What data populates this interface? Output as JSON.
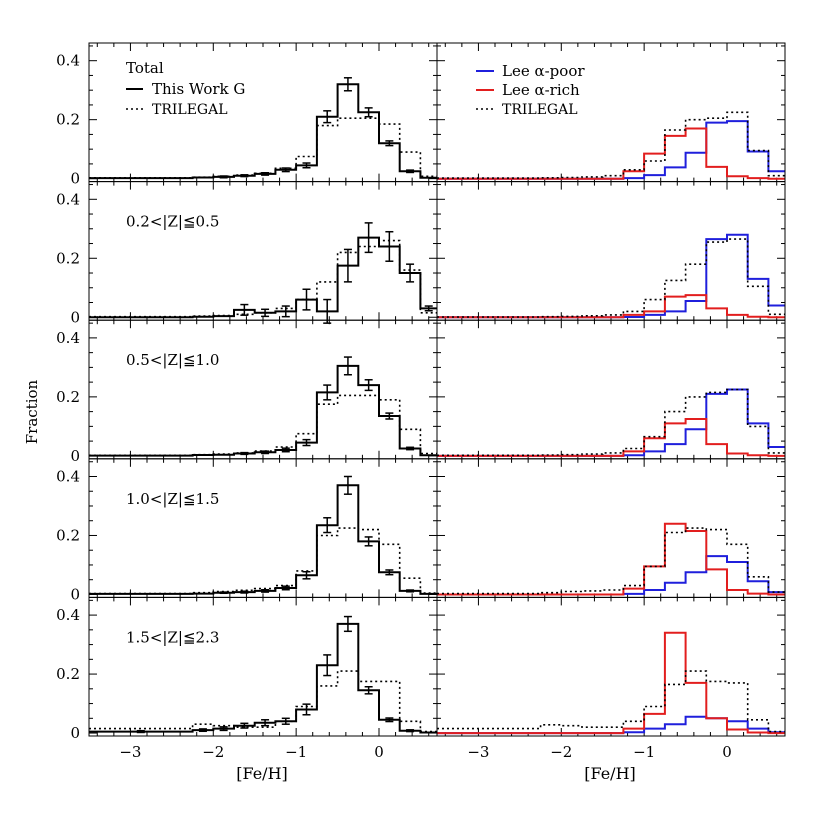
{
  "figure": {
    "ylabel": "Fraction",
    "xlabel": "[Fe/H]",
    "xlim": [
      -3.5,
      0.7
    ],
    "ylim": [
      -0.01,
      0.46
    ],
    "x_ticks": [
      -3,
      -2,
      -1,
      0
    ],
    "x_tick_labels": [
      "−3",
      "−2",
      "−1",
      "0"
    ],
    "y_ticks": [
      0,
      0.2,
      0.4
    ],
    "y_tick_labels": [
      "0",
      "0.2",
      "0.4"
    ]
  },
  "colors": {
    "blue": "#1f1fdc",
    "red": "#e21e1e",
    "black": "#000000"
  },
  "legend_left": {
    "title": "Total",
    "items": [
      "This Work G",
      "TRILEGAL"
    ]
  },
  "legend_right": {
    "items": [
      "Lee α-poor",
      "Lee α-rich",
      "TRILEGAL"
    ]
  },
  "chart_data": [
    {
      "type": "step",
      "panel": "left",
      "row": 0,
      "label": "Total",
      "bin_edges": [
        -3.5,
        -2.25,
        -2.0,
        -1.75,
        -1.5,
        -1.25,
        -1.0,
        -0.75,
        -0.5,
        -0.25,
        0.0,
        0.25,
        0.5,
        0.7
      ],
      "series": [
        {
          "name": "This Work G",
          "style": "solid",
          "values": [
            0.002,
            0.004,
            0.006,
            0.01,
            0.016,
            0.03,
            0.045,
            0.21,
            0.32,
            0.225,
            0.12,
            0.025,
            0.003
          ],
          "errors": [
            0.002,
            0.002,
            0.003,
            0.003,
            0.004,
            0.006,
            0.008,
            0.02,
            0.022,
            0.015,
            0.008,
            0.004,
            0.002
          ]
        },
        {
          "name": "TRILEGAL",
          "style": "dotted",
          "values": [
            0.003,
            0.005,
            0.008,
            0.012,
            0.018,
            0.035,
            0.075,
            0.18,
            0.205,
            0.205,
            0.185,
            0.09,
            0.008
          ]
        }
      ]
    },
    {
      "type": "step",
      "panel": "left",
      "row": 1,
      "label": "0.2<|Z|≦0.5",
      "bin_edges": [
        -3.5,
        -2.25,
        -2.0,
        -1.75,
        -1.5,
        -1.25,
        -1.0,
        -0.75,
        -0.5,
        -0.25,
        0.0,
        0.25,
        0.5,
        0.7
      ],
      "series": [
        {
          "name": "This Work G",
          "style": "solid",
          "values": [
            0.0,
            0.002,
            0.004,
            0.025,
            0.015,
            0.02,
            0.06,
            0.02,
            0.175,
            0.27,
            0.24,
            0.15,
            0.03
          ],
          "errors": [
            0.0,
            0.003,
            0.004,
            0.018,
            0.012,
            0.018,
            0.035,
            0.04,
            0.055,
            0.05,
            0.05,
            0.03,
            0.008
          ]
        },
        {
          "name": "TRILEGAL",
          "style": "dotted",
          "values": [
            0.002,
            0.004,
            0.006,
            0.01,
            0.015,
            0.03,
            0.06,
            0.12,
            0.22,
            0.24,
            0.26,
            0.16,
            0.015
          ]
        }
      ]
    },
    {
      "type": "step",
      "panel": "left",
      "row": 2,
      "label": "0.5<|Z|≦1.0",
      "bin_edges": [
        -3.5,
        -2.25,
        -2.0,
        -1.75,
        -1.5,
        -1.25,
        -1.0,
        -0.75,
        -0.5,
        -0.25,
        0.0,
        0.25,
        0.5,
        0.7
      ],
      "series": [
        {
          "name": "This Work G",
          "style": "solid",
          "values": [
            0.001,
            0.003,
            0.004,
            0.008,
            0.012,
            0.02,
            0.045,
            0.215,
            0.305,
            0.24,
            0.135,
            0.025,
            0.002
          ],
          "errors": [
            0.001,
            0.002,
            0.002,
            0.003,
            0.004,
            0.006,
            0.01,
            0.025,
            0.03,
            0.018,
            0.01,
            0.004,
            0.001
          ]
        },
        {
          "name": "TRILEGAL",
          "style": "dotted",
          "values": [
            0.002,
            0.004,
            0.006,
            0.01,
            0.016,
            0.03,
            0.075,
            0.175,
            0.205,
            0.205,
            0.19,
            0.09,
            0.008
          ]
        }
      ]
    },
    {
      "type": "step",
      "panel": "left",
      "row": 3,
      "label": "1.0<|Z|≦1.5",
      "bin_edges": [
        -3.5,
        -2.25,
        -2.0,
        -1.75,
        -1.5,
        -1.25,
        -1.0,
        -0.75,
        -0.5,
        -0.25,
        0.0,
        0.25,
        0.5,
        0.7
      ],
      "series": [
        {
          "name": "This Work G",
          "style": "solid",
          "values": [
            0.002,
            0.003,
            0.006,
            0.008,
            0.012,
            0.022,
            0.065,
            0.235,
            0.37,
            0.18,
            0.075,
            0.012,
            0.002
          ],
          "errors": [
            0.001,
            0.002,
            0.002,
            0.003,
            0.004,
            0.006,
            0.012,
            0.025,
            0.03,
            0.015,
            0.008,
            0.003,
            0.001
          ]
        },
        {
          "name": "TRILEGAL",
          "style": "dotted",
          "values": [
            0.003,
            0.006,
            0.01,
            0.014,
            0.02,
            0.03,
            0.08,
            0.2,
            0.225,
            0.22,
            0.17,
            0.055,
            0.005
          ]
        }
      ]
    },
    {
      "type": "step",
      "panel": "left",
      "row": 4,
      "label": "1.5<|Z|≦2.3",
      "bin_edges": [
        -3.5,
        -2.25,
        -2.0,
        -1.75,
        -1.5,
        -1.25,
        -1.0,
        -0.75,
        -0.5,
        -0.25,
        0.0,
        0.25,
        0.5,
        0.7
      ],
      "series": [
        {
          "name": "This Work G",
          "style": "solid",
          "values": [
            0.005,
            0.01,
            0.015,
            0.025,
            0.035,
            0.04,
            0.08,
            0.23,
            0.37,
            0.145,
            0.045,
            0.008,
            0.002
          ],
          "errors": [
            0.003,
            0.004,
            0.006,
            0.008,
            0.01,
            0.01,
            0.018,
            0.035,
            0.025,
            0.012,
            0.006,
            0.003,
            0.001
          ]
        },
        {
          "name": "TRILEGAL",
          "style": "dotted",
          "values": [
            0.015,
            0.03,
            0.025,
            0.02,
            0.02,
            0.04,
            0.09,
            0.16,
            0.21,
            0.175,
            0.175,
            0.04,
            0.005
          ]
        }
      ]
    },
    {
      "type": "step",
      "panel": "right",
      "row": 0,
      "bin_edges": [
        -3.5,
        -2.25,
        -2.0,
        -1.75,
        -1.5,
        -1.25,
        -1.0,
        -0.75,
        -0.5,
        -0.25,
        0.0,
        0.25,
        0.5,
        0.7
      ],
      "series": [
        {
          "name": "Lee α-poor",
          "color": "blue",
          "values": [
            0,
            0,
            0,
            0,
            0,
            0.002,
            0.012,
            0.038,
            0.088,
            0.19,
            0.195,
            0.092,
            0.025
          ]
        },
        {
          "name": "Lee α-rich",
          "color": "red",
          "values": [
            0,
            0,
            0,
            0,
            0,
            0.025,
            0.085,
            0.145,
            0.17,
            0.04,
            0.008,
            0.002,
            0
          ]
        },
        {
          "name": "TRILEGAL",
          "style": "dotted",
          "values": [
            0.002,
            0.003,
            0.004,
            0.006,
            0.01,
            0.03,
            0.06,
            0.165,
            0.2,
            0.205,
            0.225,
            0.095,
            0.01
          ]
        }
      ]
    },
    {
      "type": "step",
      "panel": "right",
      "row": 1,
      "bin_edges": [
        -3.5,
        -2.25,
        -2.0,
        -1.75,
        -1.5,
        -1.25,
        -1.0,
        -0.75,
        -0.5,
        -0.25,
        0.0,
        0.25,
        0.5,
        0.7
      ],
      "series": [
        {
          "name": "Lee α-poor",
          "color": "blue",
          "values": [
            0,
            0,
            0,
            0,
            0,
            0.001,
            0.008,
            0.02,
            0.055,
            0.265,
            0.28,
            0.13,
            0.04
          ]
        },
        {
          "name": "Lee α-rich",
          "color": "red",
          "values": [
            0,
            0,
            0,
            0,
            0,
            0.008,
            0.02,
            0.07,
            0.075,
            0.03,
            0.008,
            0.002,
            0
          ]
        },
        {
          "name": "TRILEGAL",
          "style": "dotted",
          "values": [
            0.001,
            0.002,
            0.003,
            0.005,
            0.008,
            0.02,
            0.06,
            0.125,
            0.18,
            0.255,
            0.265,
            0.105,
            0.01
          ]
        }
      ]
    },
    {
      "type": "step",
      "panel": "right",
      "row": 2,
      "bin_edges": [
        -3.5,
        -2.25,
        -2.0,
        -1.75,
        -1.5,
        -1.25,
        -1.0,
        -0.75,
        -0.5,
        -0.25,
        0.0,
        0.25,
        0.5,
        0.7
      ],
      "series": [
        {
          "name": "Lee α-poor",
          "color": "blue",
          "values": [
            0,
            0,
            0,
            0,
            0,
            0.002,
            0.015,
            0.04,
            0.09,
            0.21,
            0.225,
            0.11,
            0.03
          ]
        },
        {
          "name": "Lee α-rich",
          "color": "red",
          "values": [
            0,
            0,
            0,
            0,
            0,
            0.015,
            0.06,
            0.11,
            0.125,
            0.04,
            0.008,
            0.002,
            0
          ]
        },
        {
          "name": "TRILEGAL",
          "style": "dotted",
          "values": [
            0.002,
            0.003,
            0.004,
            0.006,
            0.01,
            0.025,
            0.065,
            0.15,
            0.2,
            0.215,
            0.225,
            0.1,
            0.01
          ]
        }
      ]
    },
    {
      "type": "step",
      "panel": "right",
      "row": 3,
      "bin_edges": [
        -3.5,
        -2.25,
        -2.0,
        -1.75,
        -1.5,
        -1.25,
        -1.0,
        -0.75,
        -0.5,
        -0.25,
        0.0,
        0.25,
        0.5,
        0.7
      ],
      "series": [
        {
          "name": "Lee α-poor",
          "color": "blue",
          "values": [
            0,
            0,
            0,
            0,
            0,
            0.002,
            0.015,
            0.04,
            0.075,
            0.13,
            0.11,
            0.045,
            0.008
          ]
        },
        {
          "name": "Lee α-rich",
          "color": "red",
          "values": [
            0,
            0,
            0,
            0,
            0,
            0.02,
            0.095,
            0.24,
            0.215,
            0.085,
            0.015,
            0.003,
            0
          ]
        },
        {
          "name": "TRILEGAL",
          "style": "dotted",
          "values": [
            0.003,
            0.006,
            0.01,
            0.012,
            0.015,
            0.03,
            0.095,
            0.21,
            0.225,
            0.22,
            0.17,
            0.06,
            0.008
          ]
        }
      ]
    },
    {
      "type": "step",
      "panel": "right",
      "row": 4,
      "bin_edges": [
        -3.5,
        -2.25,
        -2.0,
        -1.75,
        -1.5,
        -1.25,
        -1.0,
        -0.75,
        -0.5,
        -0.25,
        0.0,
        0.25,
        0.5,
        0.7
      ],
      "series": [
        {
          "name": "Lee α-poor",
          "color": "blue",
          "values": [
            0,
            0,
            0,
            0,
            0,
            0.003,
            0.015,
            0.03,
            0.055,
            0.05,
            0.04,
            0.015,
            0.003
          ]
        },
        {
          "name": "Lee α-rich",
          "color": "red",
          "values": [
            0,
            0,
            0,
            0,
            0,
            0.015,
            0.065,
            0.34,
            0.17,
            0.05,
            0.012,
            0.002,
            0
          ]
        },
        {
          "name": "TRILEGAL",
          "style": "dotted",
          "values": [
            0.015,
            0.028,
            0.025,
            0.02,
            0.02,
            0.04,
            0.09,
            0.165,
            0.21,
            0.175,
            0.17,
            0.045,
            0.005
          ]
        }
      ]
    }
  ]
}
